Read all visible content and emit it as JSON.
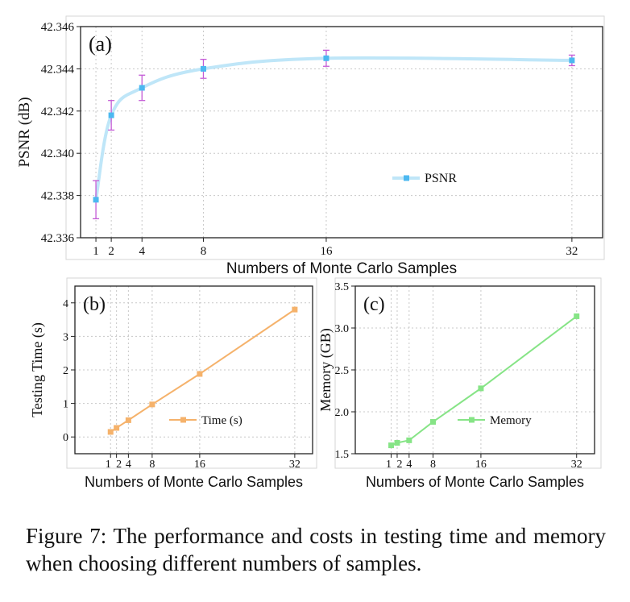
{
  "chart_data": [
    {
      "type": "line",
      "panel_label": "(a)",
      "xlabel": "Numbers of Monte Carlo Samples",
      "ylabel": "PSNR (dB)",
      "ylim": [
        42.336,
        42.346
      ],
      "yticks": [
        "42.336",
        "42.338",
        "42.340",
        "42.342",
        "42.344",
        "42.346"
      ],
      "xticks": [
        "1",
        "2",
        "4",
        "8",
        "16",
        "32"
      ],
      "legend_position": "center-right",
      "grid": true,
      "series": [
        {
          "name": "PSNR",
          "color": "#4cb8f0",
          "x": [
            1,
            2,
            4,
            8,
            16,
            32
          ],
          "values": [
            42.3378,
            42.3418,
            42.3431,
            42.344,
            42.3445,
            42.3444
          ],
          "error": [
            0.0009,
            0.0007,
            0.0006,
            0.00045,
            0.00038,
            0.00025
          ]
        }
      ]
    },
    {
      "type": "line",
      "panel_label": "(b)",
      "xlabel": "Numbers of Monte Carlo Samples",
      "ylabel": "Testing Time (s)",
      "ylim": [
        -0.5,
        4.5
      ],
      "yticks": [
        "0",
        "1",
        "2",
        "3",
        "4"
      ],
      "xticks": [
        "1",
        "2",
        "4",
        "8",
        "16",
        "32"
      ],
      "xtick_labels": [
        "1",
        "2",
        "4",
        "8",
        "16",
        "32"
      ],
      "legend_position": "bottom-right",
      "grid": true,
      "series": [
        {
          "name": "Time (s)",
          "color": "#f5b26b",
          "x": [
            1,
            2,
            4,
            8,
            16,
            32
          ],
          "values": [
            0.15,
            0.27,
            0.5,
            0.97,
            1.88,
            3.8
          ]
        }
      ]
    },
    {
      "type": "line",
      "panel_label": "(c)",
      "xlabel": "Numbers of Monte Carlo Samples",
      "ylabel": "Memory (GB)",
      "ylim": [
        1.5,
        3.5
      ],
      "yticks": [
        "1.5",
        "2.0",
        "2.5",
        "3.0",
        "3.5"
      ],
      "xticks": [
        "1",
        "2",
        "4",
        "8",
        "16",
        "32"
      ],
      "legend_position": "bottom-right",
      "grid": true,
      "series": [
        {
          "name": "Memory",
          "color": "#86e486",
          "x": [
            1,
            2,
            4,
            8,
            16,
            32
          ],
          "values": [
            1.6,
            1.63,
            1.66,
            1.88,
            2.28,
            3.14
          ]
        }
      ]
    }
  ],
  "caption": "Figure 7: The performance and costs in testing time and memory when choosing different numbers of samples."
}
